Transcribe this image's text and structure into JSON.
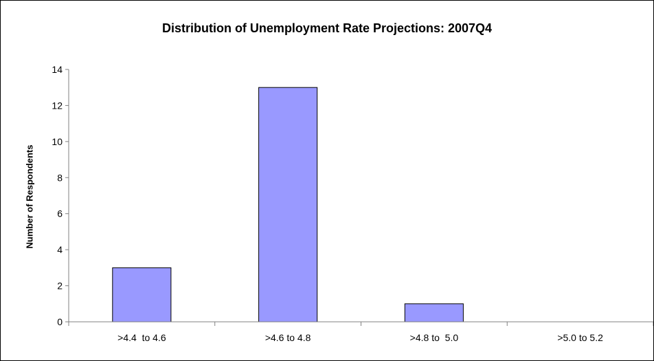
{
  "chart_data": {
    "type": "bar",
    "title": "Distribution of Unemployment Rate Projections: 2007Q4",
    "xlabel": "",
    "ylabel": "Number of Respondents",
    "categories": [
      ">4.4  to 4.6",
      ">4.6 to 4.8",
      ">4.8 to  5.0",
      ">5.0 to 5.2"
    ],
    "values": [
      3,
      13,
      1,
      0
    ],
    "ylim": [
      0,
      14
    ],
    "yticks": [
      0,
      2,
      4,
      6,
      8,
      10,
      12,
      14
    ],
    "grid": false,
    "legend": "none",
    "colors": {
      "bar_fill": "#9999ff",
      "bar_stroke": "#000000",
      "axis": "#808080"
    }
  }
}
